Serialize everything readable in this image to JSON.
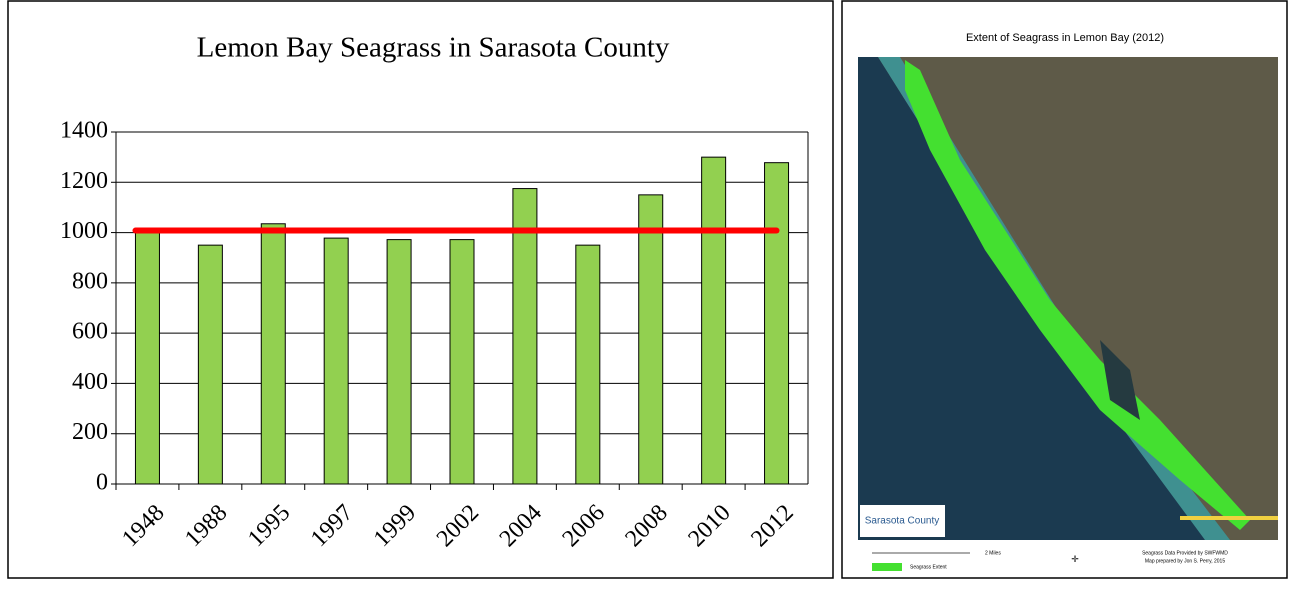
{
  "chart_data": {
    "type": "bar",
    "title": "Lemon Bay Seagrass in Sarasota County",
    "categories": [
      "1948",
      "1988",
      "1995",
      "1997",
      "1999",
      "2002",
      "2004",
      "2006",
      "2008",
      "2010",
      "2012"
    ],
    "values": [
      1005,
      950,
      1035,
      978,
      972,
      972,
      1175,
      950,
      1150,
      1300,
      1278
    ],
    "color": "#92d050",
    "reference_line": {
      "value": 1008,
      "color": "#ff0000"
    },
    "ylim": [
      0,
      1400
    ],
    "yticks": [
      0,
      200,
      400,
      600,
      800,
      1000,
      1200,
      1400
    ],
    "grid": true
  },
  "map": {
    "title": "Extent of Seagrass in Lemon Bay (2012)",
    "logo": "Sarasota County",
    "scale": "2 Miles",
    "legend": "Seagrass Extent",
    "credit": [
      "Seagrass Data Provided by SWFWMD",
      "Map prepared by Jon S. Perry, 2015"
    ]
  }
}
